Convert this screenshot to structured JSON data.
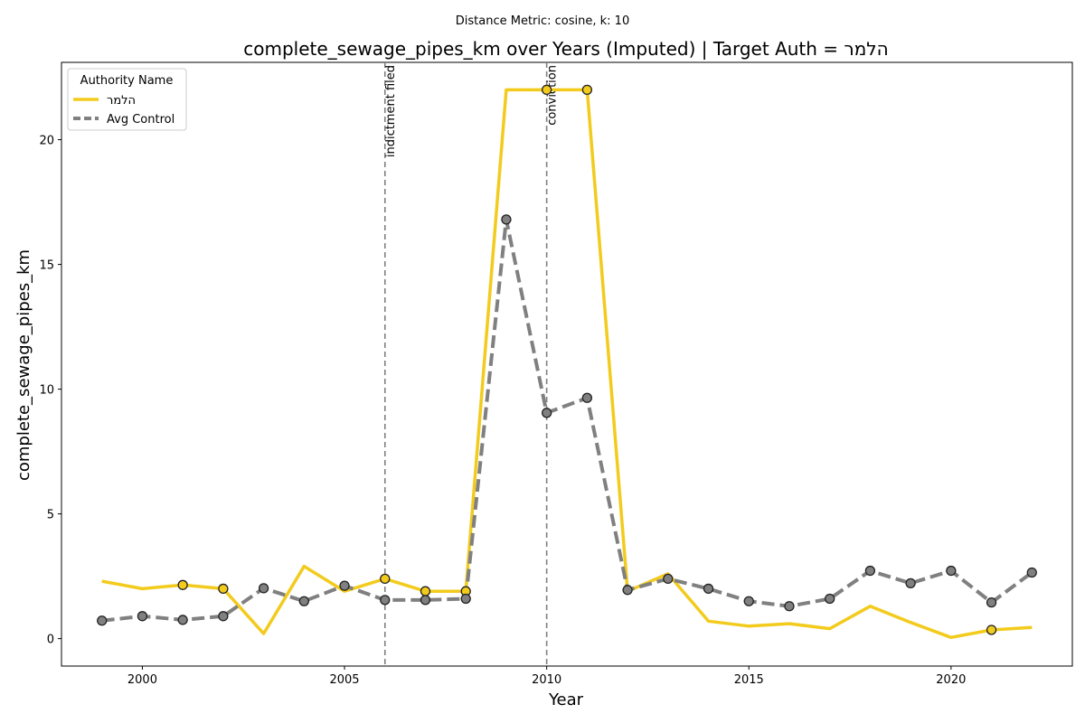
{
  "chart_data": {
    "type": "line",
    "suptitle": "Distance Metric: cosine, k: 10",
    "title": "complete_sewage_pipes_km over Years (Imputed) | Target Auth = הלמר",
    "xlabel": "Year",
    "ylabel": "complete_sewage_pipes_km",
    "xlim": [
      1998,
      2023
    ],
    "ylim": [
      -1.1,
      23.1
    ],
    "x_ticks": [
      2000,
      2005,
      2010,
      2015,
      2020
    ],
    "y_ticks": [
      0,
      5,
      10,
      15,
      20
    ],
    "grid": false,
    "legend": {
      "title": "Authority Name",
      "placement": "top-left",
      "entries": [
        "הלמר",
        "Avg Control"
      ]
    },
    "events": [
      {
        "year": 2006,
        "label": "indictment filed"
      },
      {
        "year": 2010,
        "label": "conviction"
      }
    ],
    "series": [
      {
        "name": "הלמר",
        "color": "#f2cb1d",
        "style": "solid",
        "x": [
          1999,
          2000,
          2001,
          2002,
          2003,
          2004,
          2005,
          2006,
          2007,
          2008,
          2009,
          2010,
          2011,
          2012,
          2013,
          2014,
          2015,
          2016,
          2017,
          2018,
          2019,
          2020,
          2021,
          2022
        ],
        "y": [
          2.3,
          2.0,
          2.15,
          2.0,
          0.2,
          2.9,
          1.9,
          2.4,
          1.9,
          1.9,
          22.0,
          22.0,
          22.0,
          1.9,
          2.6,
          0.7,
          0.5,
          0.6,
          0.4,
          1.3,
          0.65,
          0.05,
          0.35,
          0.45
        ],
        "markers_at": [
          2001,
          2002,
          2006,
          2007,
          2008,
          2010,
          2011,
          2021
        ]
      },
      {
        "name": "Avg Control",
        "color": "#808080",
        "style": "dashed",
        "x": [
          1999,
          2000,
          2001,
          2002,
          2003,
          2004,
          2005,
          2006,
          2007,
          2008,
          2009,
          2010,
          2011,
          2012,
          2013,
          2014,
          2015,
          2016,
          2017,
          2018,
          2019,
          2020,
          2021,
          2022
        ],
        "y": [
          0.72,
          0.9,
          0.75,
          0.9,
          2.02,
          1.5,
          2.12,
          1.55,
          1.55,
          1.6,
          16.8,
          9.05,
          9.65,
          1.95,
          2.4,
          2.0,
          1.5,
          1.3,
          1.6,
          2.72,
          2.22,
          2.72,
          1.45,
          2.65
        ],
        "markers_at": [
          1999,
          2000,
          2001,
          2002,
          2003,
          2004,
          2005,
          2006,
          2007,
          2008,
          2009,
          2010,
          2011,
          2012,
          2013,
          2014,
          2015,
          2016,
          2017,
          2018,
          2019,
          2020,
          2021,
          2022
        ]
      }
    ]
  }
}
